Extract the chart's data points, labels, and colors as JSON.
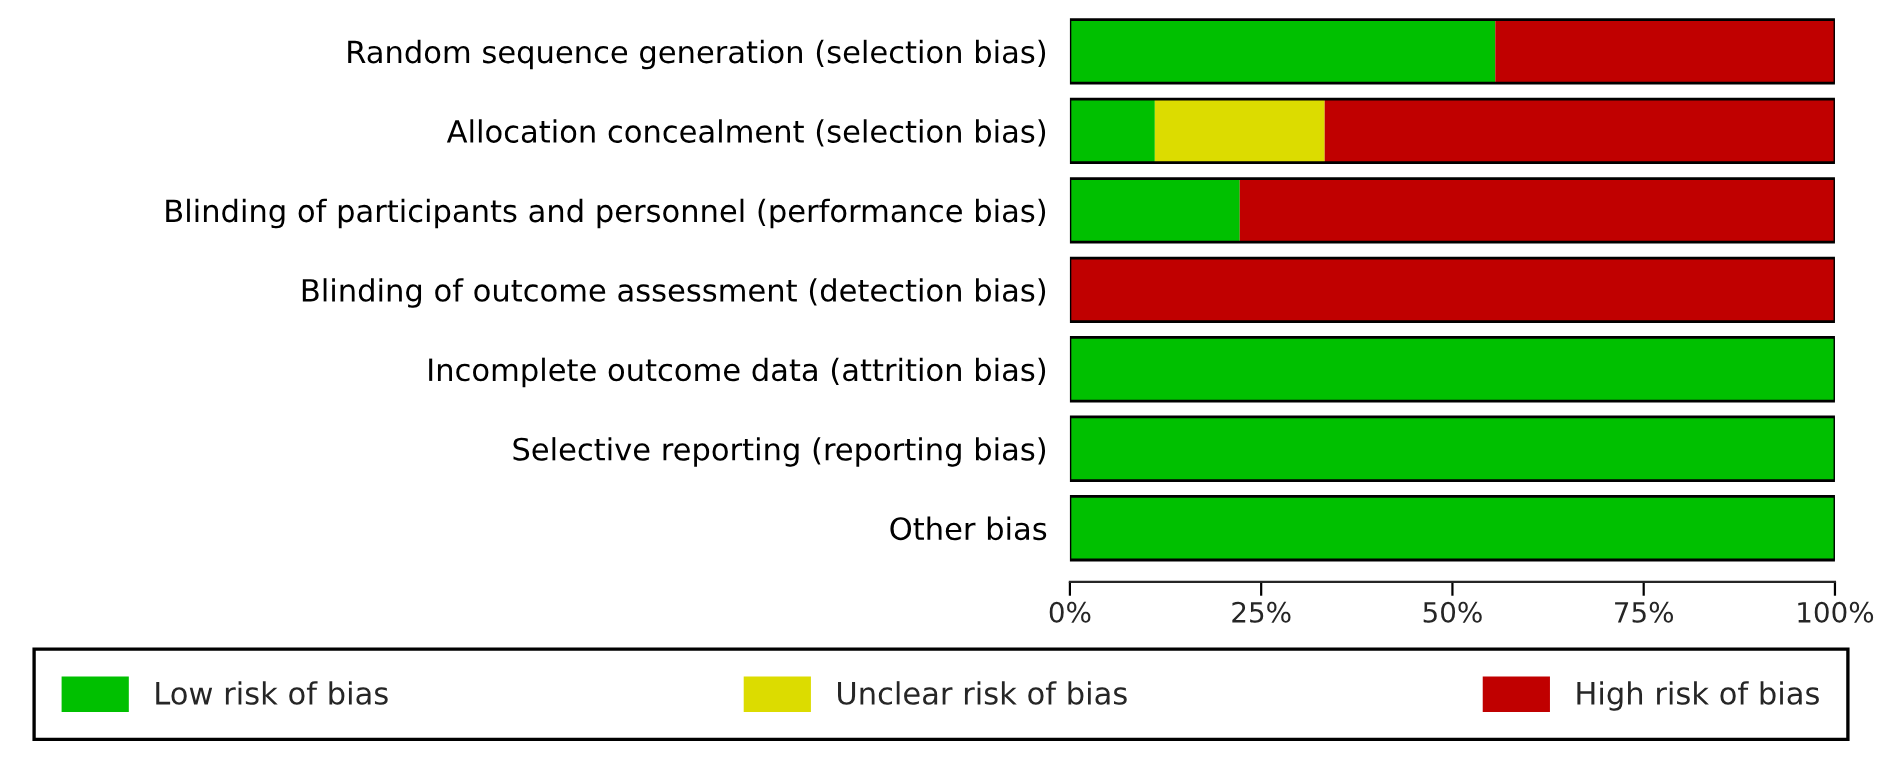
{
  "chart_data": {
    "type": "bar",
    "orientation": "horizontal",
    "stacked": true,
    "categories": [
      "Random sequence generation (selection bias)",
      "Allocation concealment (selection bias)",
      "Blinding of participants and personnel (performance bias)",
      "Blinding of outcome assessment (detection bias)",
      "Incomplete outcome data (attrition bias)",
      "Selective reporting (reporting bias)",
      "Other bias"
    ],
    "series": [
      {
        "name": "Low risk of bias",
        "color": "#00c000",
        "values": [
          55.6,
          11.1,
          22.2,
          0,
          100,
          100,
          100
        ]
      },
      {
        "name": "Unclear risk of bias",
        "color": "#dcdc00",
        "values": [
          0,
          22.2,
          0,
          0,
          0,
          0,
          0
        ]
      },
      {
        "name": "High risk of bias",
        "color": "#c00000",
        "values": [
          44.4,
          66.7,
          77.8,
          100,
          0,
          0,
          0
        ]
      }
    ],
    "xlim": [
      0,
      100
    ],
    "xticks": [
      {
        "value": 0,
        "label": "0%"
      },
      {
        "value": 25,
        "label": "25%"
      },
      {
        "value": 50,
        "label": "50%"
      },
      {
        "value": 75,
        "label": "75%"
      },
      {
        "value": 100,
        "label": "100%"
      }
    ],
    "grid": false,
    "legend": "bottom"
  }
}
